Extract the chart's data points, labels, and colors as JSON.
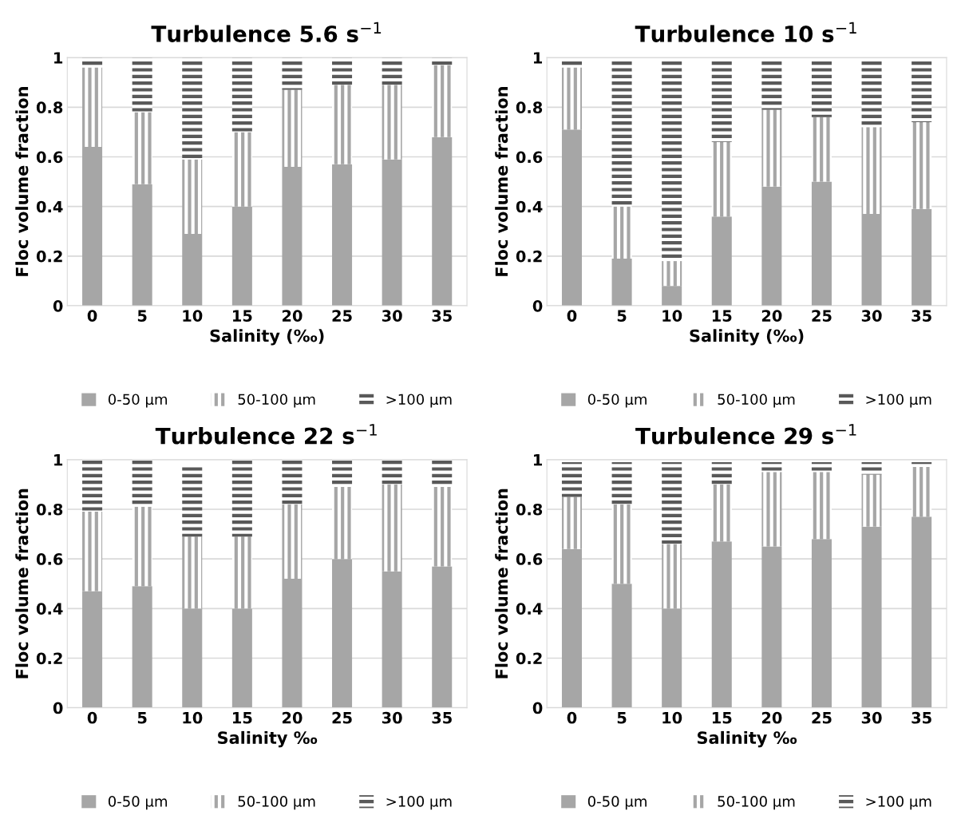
{
  "chart_data": [
    {
      "type": "bar",
      "stacked": true,
      "title": "Turbulence 5.6 s$^{−1}$",
      "xlabel": "Salinity (‰)",
      "ylabel": "Floc volume fraction",
      "categories": [
        "0",
        "5",
        "10",
        "15",
        "20",
        "25",
        "30",
        "35"
      ],
      "ylim": [
        0,
        1
      ],
      "yticks": [
        0,
        0.2,
        0.4,
        0.6,
        0.8,
        1
      ],
      "grid": "y",
      "legend": "bottom",
      "series": [
        {
          "name": "0-50 µm",
          "color": "#a6a6a6",
          "values": [
            0.64,
            0.49,
            0.29,
            0.4,
            0.56,
            0.57,
            0.59,
            0.68
          ]
        },
        {
          "name": "50-100 µm",
          "color": "#a6a6a6",
          "values": [
            0.32,
            0.29,
            0.3,
            0.3,
            0.31,
            0.32,
            0.3,
            0.29
          ]
        },
        {
          "name": ">100 µm",
          "color": "#595959",
          "values": [
            0.04,
            0.22,
            0.41,
            0.3,
            0.13,
            0.11,
            0.11,
            0.03
          ]
        }
      ]
    },
    {
      "type": "bar",
      "stacked": true,
      "title": "Turbulence 10 s$^{−1}$",
      "xlabel": "Salinity (‰)",
      "ylabel": "Floc volume fraction",
      "categories": [
        "0",
        "5",
        "10",
        "15",
        "20",
        "25",
        "30",
        "35"
      ],
      "ylim": [
        0,
        1
      ],
      "yticks": [
        0,
        0.2,
        0.4,
        0.6,
        0.8,
        1
      ],
      "grid": "y",
      "legend": "bottom",
      "series": [
        {
          "name": "0-50 µm",
          "color": "#a6a6a6",
          "values": [
            0.71,
            0.19,
            0.08,
            0.36,
            0.48,
            0.5,
            0.37,
            0.39
          ]
        },
        {
          "name": "50-100 µm",
          "color": "#a6a6a6",
          "values": [
            0.25,
            0.21,
            0.1,
            0.3,
            0.31,
            0.26,
            0.35,
            0.35
          ]
        },
        {
          "name": ">100 µm",
          "color": "#595959",
          "values": [
            0.03,
            0.59,
            0.81,
            0.33,
            0.2,
            0.23,
            0.27,
            0.25
          ]
        }
      ]
    },
    {
      "type": "bar",
      "stacked": true,
      "title": "Turbulence 22 s$^{−1}$",
      "xlabel": "Salinity ‰",
      "ylabel": "Floc volume fraction",
      "categories": [
        "0",
        "5",
        "10",
        "15",
        "20",
        "25",
        "30",
        "35"
      ],
      "ylim": [
        0,
        1
      ],
      "yticks": [
        0,
        0.2,
        0.4,
        0.6,
        0.8,
        1
      ],
      "grid": "y",
      "legend": "bottom",
      "series": [
        {
          "name": "0-50 µm",
          "color": "#a6a6a6",
          "values": [
            0.47,
            0.49,
            0.4,
            0.4,
            0.52,
            0.6,
            0.55,
            0.57
          ]
        },
        {
          "name": "50-100 µm",
          "color": "#a6a6a6",
          "values": [
            0.32,
            0.32,
            0.29,
            0.29,
            0.3,
            0.29,
            0.35,
            0.32
          ]
        },
        {
          "name": ">100 µm",
          "color": "#595959",
          "values": [
            0.21,
            0.19,
            0.29,
            0.31,
            0.18,
            0.11,
            0.1,
            0.11
          ]
        }
      ]
    },
    {
      "type": "bar",
      "stacked": true,
      "title": "Turbulence 29 s$^{−1}$",
      "xlabel": "Salinity ‰",
      "ylabel": "Floc volume fraction",
      "categories": [
        "0",
        "5",
        "10",
        "15",
        "20",
        "25",
        "30",
        "35"
      ],
      "ylim": [
        0,
        1
      ],
      "yticks": [
        0,
        0.2,
        0.4,
        0.6,
        0.8,
        1
      ],
      "grid": "y",
      "legend": "bottom",
      "series": [
        {
          "name": "0-50 µm",
          "color": "#a6a6a6",
          "values": [
            0.64,
            0.5,
            0.4,
            0.67,
            0.65,
            0.68,
            0.73,
            0.77
          ]
        },
        {
          "name": "50-100 µm",
          "color": "#a6a6a6",
          "values": [
            0.21,
            0.32,
            0.26,
            0.23,
            0.3,
            0.27,
            0.21,
            0.2
          ]
        },
        {
          "name": ">100 µm",
          "color": "#595959",
          "values": [
            0.14,
            0.17,
            0.33,
            0.09,
            0.04,
            0.04,
            0.05,
            0.02
          ]
        }
      ]
    }
  ]
}
